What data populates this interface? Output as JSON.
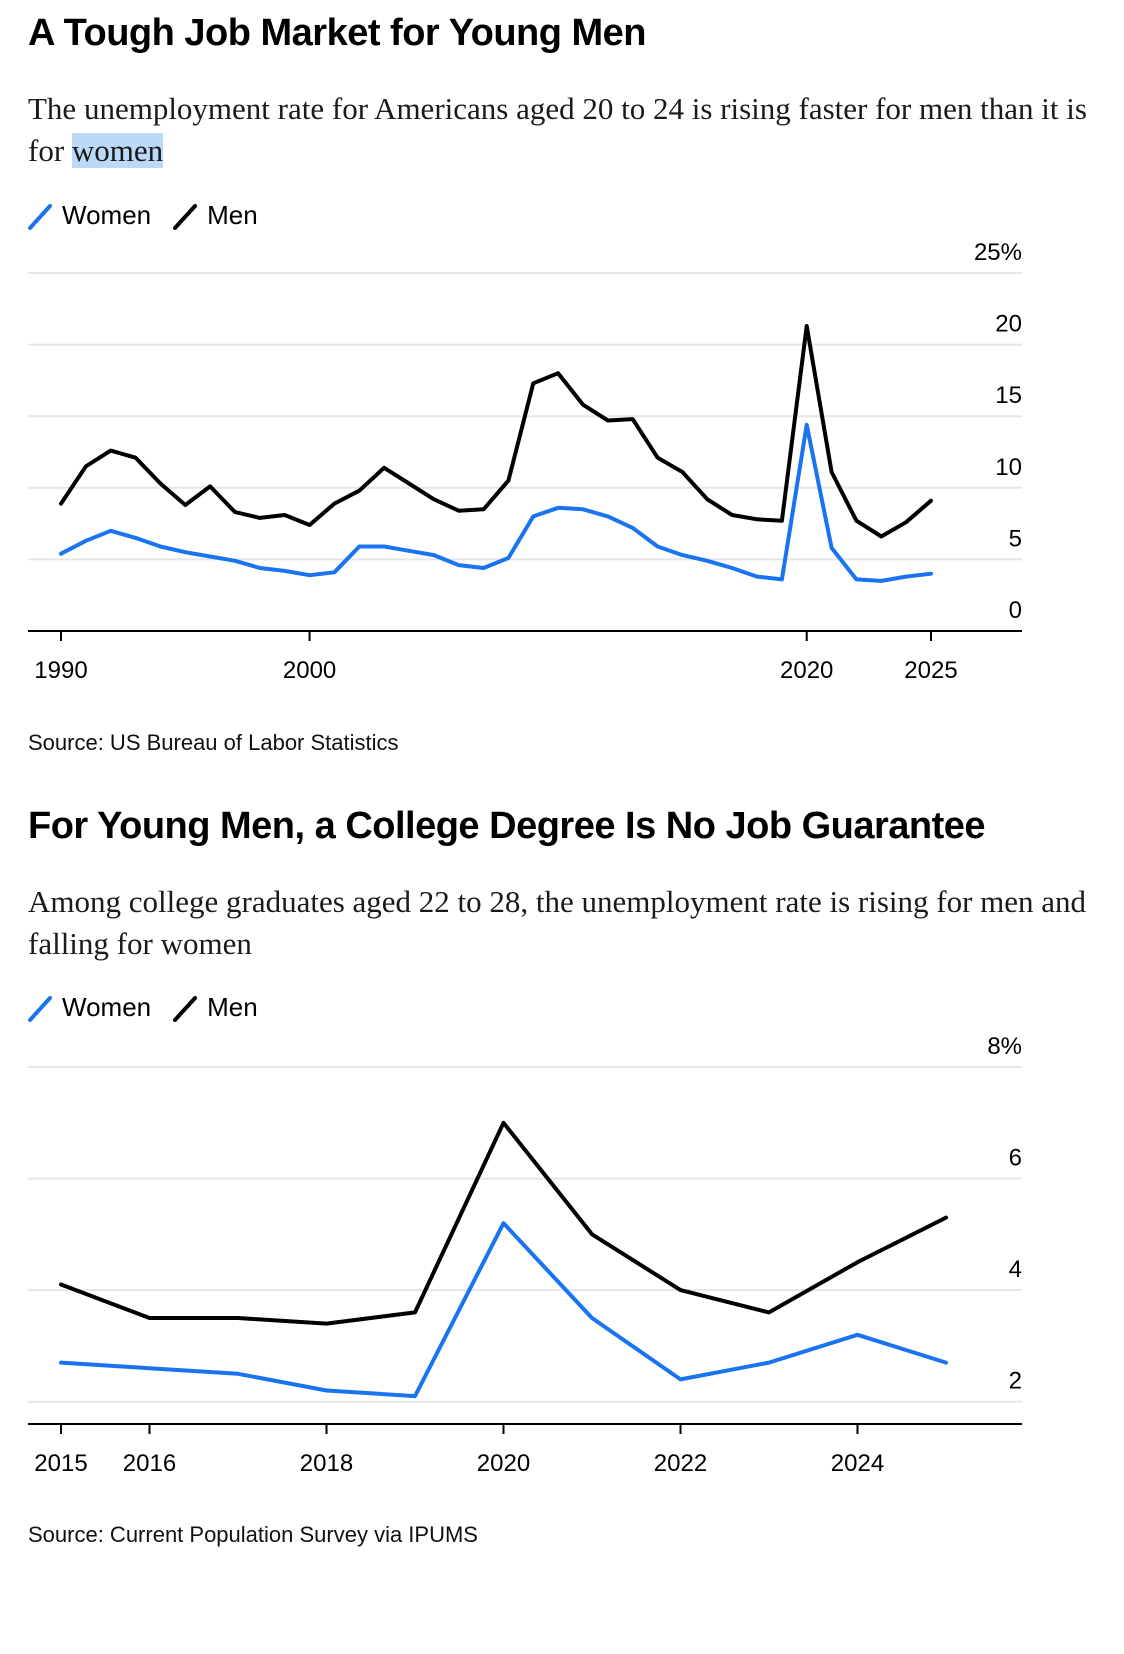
{
  "colors": {
    "women": "#1a73f0",
    "men": "#000000",
    "grid": "#e6e6e6",
    "axis": "#000000",
    "highlight": "#bcd9f7"
  },
  "chart1": {
    "title": "A Tough Job Market for Young Men",
    "subtitle_prefix": "The unemployment rate for Americans aged 20 to 24 is rising faster for men than it is for ",
    "subtitle_highlight": "women",
    "legend": {
      "women": "Women",
      "men": "Men"
    },
    "source": "Source: US Bureau of Labor Statistics"
  },
  "chart2": {
    "title": "For Young Men, a College Degree Is No Job Guarantee",
    "subtitle": "Among college graduates aged 22 to 28, the unemployment rate is rising for men and falling for women",
    "legend": {
      "women": "Women",
      "men": "Men"
    },
    "source": "Source: Current Population Survey via IPUMS"
  },
  "chart_data": [
    {
      "type": "line",
      "title": "A Tough Job Market for Young Men",
      "xlim": [
        1990,
        2025
      ],
      "ylim": [
        0,
        25
      ],
      "y_ticks": [
        0,
        5,
        10,
        15,
        20,
        25
      ],
      "y_tick_labels": [
        "0",
        "5",
        "10",
        "15",
        "20",
        "25%"
      ],
      "x_ticks": [
        1990,
        2000,
        2020,
        2025
      ],
      "x_tick_labels": [
        "1990",
        "2000",
        "2020",
        "2025"
      ],
      "grid": true,
      "legend": "top-left",
      "x": [
        1990,
        1991,
        1992,
        1993,
        1994,
        1995,
        1996,
        1997,
        1998,
        1999,
        2000,
        2001,
        2002,
        2003,
        2004,
        2005,
        2006,
        2007,
        2008,
        2009,
        2010,
        2011,
        2012,
        2013,
        2014,
        2015,
        2016,
        2017,
        2018,
        2019,
        2020,
        2021,
        2022,
        2023,
        2024,
        2025
      ],
      "series": [
        {
          "name": "Women",
          "color": "#1a73f0",
          "values": [
            5.4,
            6.3,
            7.0,
            6.5,
            5.9,
            5.5,
            5.2,
            4.9,
            4.4,
            4.2,
            3.9,
            4.1,
            5.9,
            5.9,
            5.6,
            5.3,
            4.6,
            4.4,
            5.1,
            8.0,
            8.6,
            8.5,
            8.0,
            7.2,
            5.9,
            5.3,
            4.9,
            4.4,
            3.8,
            3.6,
            14.4,
            5.8,
            3.6,
            3.5,
            3.8,
            4.0
          ]
        },
        {
          "name": "Men",
          "color": "#000000",
          "values": [
            8.9,
            11.5,
            12.6,
            12.1,
            10.3,
            8.8,
            10.1,
            8.3,
            7.9,
            8.1,
            7.4,
            8.9,
            9.8,
            11.4,
            10.3,
            9.2,
            8.4,
            8.5,
            10.5,
            17.3,
            18.0,
            15.8,
            14.7,
            14.8,
            12.1,
            11.1,
            9.2,
            8.1,
            7.8,
            7.7,
            21.3,
            11.1,
            7.7,
            6.6,
            7.6,
            9.1
          ]
        }
      ]
    },
    {
      "type": "line",
      "title": "For Young Men, a College Degree Is No Job Guarantee",
      "xlim": [
        2015,
        2025
      ],
      "ylim": [
        1.6,
        8
      ],
      "y_ticks": [
        2,
        4,
        6,
        8
      ],
      "y_tick_labels": [
        "2",
        "4",
        "6",
        "8%"
      ],
      "x_ticks": [
        2015,
        2016,
        2018,
        2020,
        2022,
        2024
      ],
      "x_tick_labels": [
        "2015",
        "2016",
        "2018",
        "2020",
        "2022",
        "2024"
      ],
      "grid": true,
      "legend": "top-left",
      "x": [
        2015,
        2016,
        2017,
        2018,
        2019,
        2020,
        2021,
        2022,
        2023,
        2024,
        2025
      ],
      "series": [
        {
          "name": "Women",
          "color": "#1a73f0",
          "values": [
            2.7,
            2.6,
            2.5,
            2.2,
            2.1,
            5.2,
            3.5,
            2.4,
            2.7,
            3.2,
            2.7
          ]
        },
        {
          "name": "Men",
          "color": "#000000",
          "values": [
            4.1,
            3.5,
            3.5,
            3.4,
            3.6,
            7.0,
            5.0,
            4.0,
            3.6,
            4.5,
            5.3
          ]
        }
      ]
    }
  ]
}
